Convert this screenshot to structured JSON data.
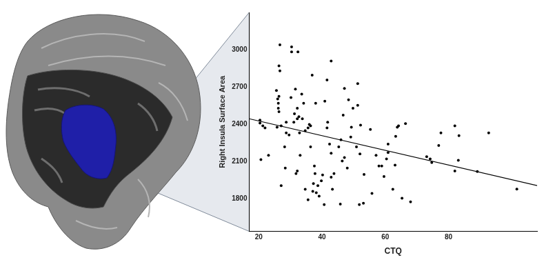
{
  "chart_data": {
    "type": "scatter",
    "x_label": "CTQ",
    "y_label": "Right Insula Surface Area",
    "xlim": [
      17,
      108
    ],
    "ylim": [
      1540,
      3300
    ],
    "xticks": [
      20,
      40,
      60,
      80
    ],
    "yticks": [
      1800,
      2100,
      2400,
      2700,
      3000
    ],
    "grid": false,
    "series": [
      {
        "type": "scatter",
        "color": "#000000",
        "marker": "circle",
        "x": [
          20.4,
          20.4,
          21.3,
          22.0,
          20.7,
          23.1,
          25.8,
          26.2,
          26.0,
          26.2,
          26.4,
          26.4,
          26.4,
          26.7,
          26.7,
          27.1,
          25.6,
          27.1,
          28.4,
          28.2,
          28.7,
          28.7,
          29.6,
          30.2,
          30.4,
          30.4,
          31.1,
          31.6,
          31.3,
          32.2,
          32.4,
          31.8,
          32.2,
          32.9,
          32.2,
          32.7,
          33.1,
          33.8,
          33.6,
          34.2,
          34.7,
          34.7,
          35.6,
          35.6,
          36.0,
          36.4,
          36.4,
          36.9,
          37.1,
          37.3,
          38.0,
          37.6,
          37.8,
          38.2,
          39.1,
          38.7,
          39.8,
          40.2,
          40.7,
          40.9,
          41.6,
          41.6,
          41.8,
          42.4,
          42.9,
          42.9,
          42.9,
          43.3,
          43.8,
          45.3,
          45.8,
          46.0,
          46.4,
          46.7,
          47.1,
          47.1,
          48.0,
          48.4,
          49.1,
          49.3,
          49.8,
          50.9,
          51.3,
          51.3,
          51.8,
          52.0,
          52.2,
          53.1,
          53.3,
          55.3,
          55.8,
          57.1,
          58.0,
          58.9,
          59.6,
          60.4,
          60.9,
          60.9,
          62.4,
          63.1,
          63.3,
          63.8,
          64.2,
          65.3,
          66.4,
          68.0,
          73.1,
          74.2,
          74.7,
          76.9,
          77.6,
          82.0,
          83.3,
          82.0,
          83.1,
          89.1,
          92.7,
          101.6
        ],
        "values": [
          2434,
          2411,
          2389,
          2372,
          2117,
          2151,
          2377,
          2570,
          2604,
          2530,
          2502,
          2626,
          2870,
          3040,
          2830,
          2389,
          2672,
          1908,
          2049,
          2219,
          2332,
          2417,
          2315,
          2615,
          3023,
          2983,
          2417,
          2683,
          2485,
          2445,
          2983,
          2004,
          2026,
          2332,
          2530,
          2462,
          2151,
          2445,
          2643,
          2570,
          2349,
          1879,
          2372,
          1794,
          2400,
          2389,
          2219,
          2796,
          1862,
          1925,
          2570,
          2066,
          2004,
          1851,
          1823,
          1908,
          1947,
          1993,
          1755,
          2587,
          2757,
          2372,
          2417,
          2242,
          2909,
          2168,
          1976,
          1879,
          2004,
          2219,
          1760,
          2276,
          2106,
          2474,
          2689,
          2134,
          2049,
          2598,
          2298,
          2377,
          2530,
          2219,
          2553,
          2728,
          1755,
          2162,
          2394,
          1766,
          1998,
          2360,
          1845,
          2151,
          2066,
          2066,
          1981,
          2123,
          2242,
          2174,
          1879,
          2072,
          2304,
          2377,
          2389,
          1806,
          2406,
          1777,
          2140,
          2123,
          2094,
          2230,
          2332,
          2389,
          2309,
          2026,
          2111,
          2021,
          2332,
          1880
        ]
      },
      {
        "type": "line",
        "color": "#000000",
        "line_style": "solid",
        "x": [
          17,
          108
        ],
        "values": [
          2445,
          1908
        ]
      }
    ]
  }
}
